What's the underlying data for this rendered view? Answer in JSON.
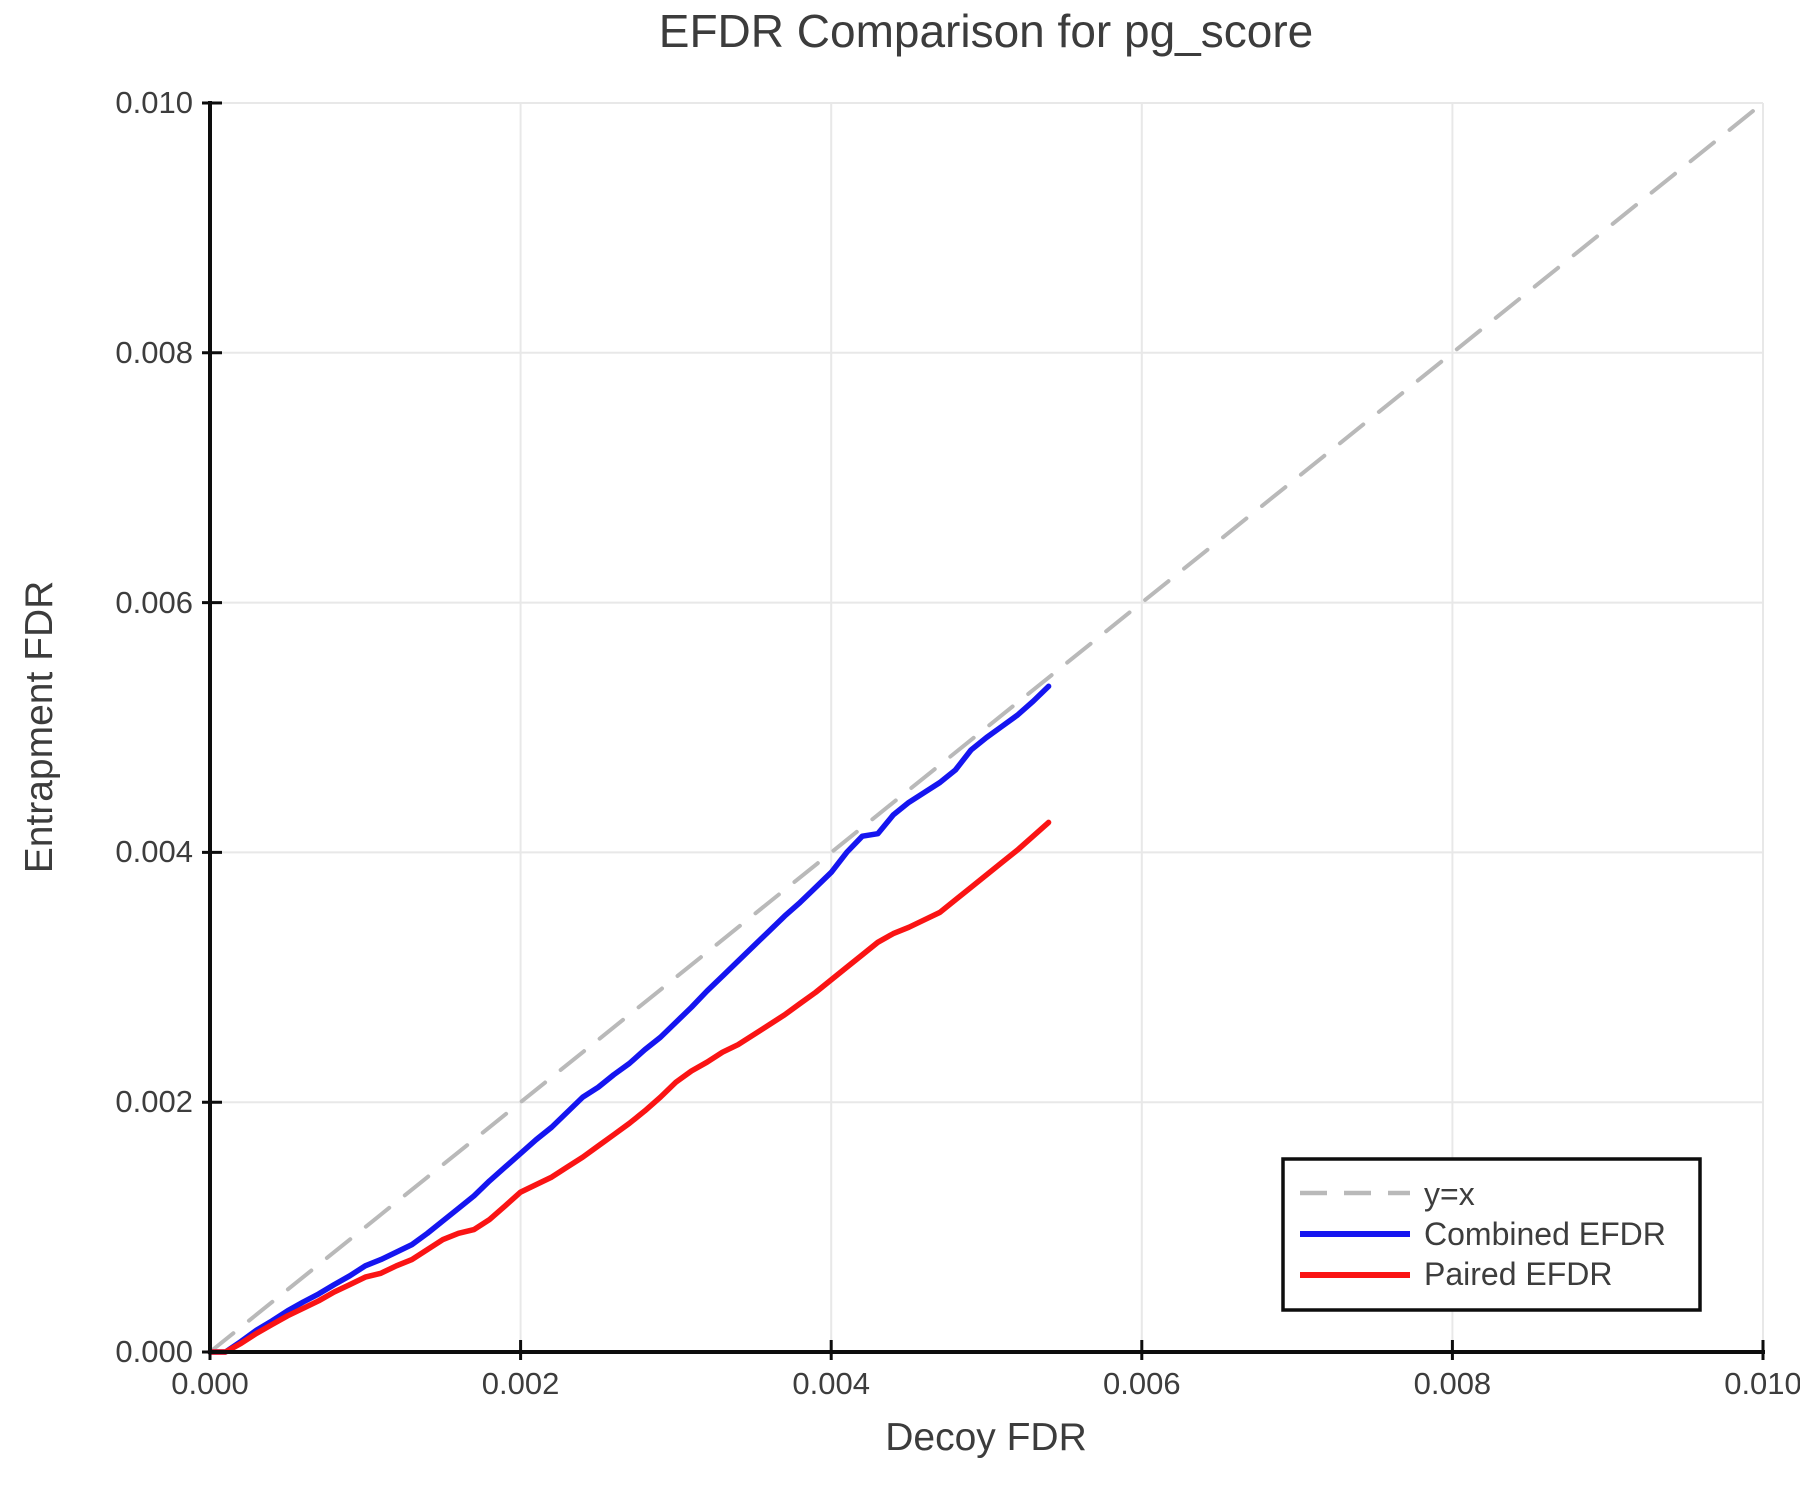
{
  "chart_data": {
    "type": "line",
    "title": "EFDR Comparison for pg_score",
    "xlabel": "Decoy FDR",
    "ylabel": "Entrapment FDR",
    "xlim": [
      0.0,
      0.01
    ],
    "ylim": [
      0.0,
      0.01
    ],
    "grid": true,
    "legend_position": "lower right",
    "xtick_values": [
      0.0,
      0.002,
      0.004,
      0.006,
      0.008,
      0.01
    ],
    "xtick_labels": [
      "0.000",
      "0.002",
      "0.004",
      "0.006",
      "0.008",
      "0.010"
    ],
    "ytick_values": [
      0.0,
      0.002,
      0.004,
      0.006,
      0.008,
      0.01
    ],
    "ytick_labels": [
      "0.000",
      "0.002",
      "0.004",
      "0.006",
      "0.008",
      "0.010"
    ],
    "x": [
      0.0,
      0.0001,
      0.0002,
      0.0003,
      0.0004,
      0.0005,
      0.0006,
      0.0007,
      0.0008,
      0.0009,
      0.001,
      0.0011,
      0.0012,
      0.0013,
      0.0014,
      0.0015,
      0.0016,
      0.0017,
      0.0018,
      0.0019,
      0.002,
      0.0021,
      0.0022,
      0.0023,
      0.0024,
      0.0025,
      0.0026,
      0.0027,
      0.0028,
      0.0029,
      0.003,
      0.0031,
      0.0032,
      0.0033,
      0.0034,
      0.0035,
      0.0036,
      0.0037,
      0.0038,
      0.0039,
      0.004,
      0.0041,
      0.0042,
      0.0043,
      0.0044,
      0.0045,
      0.0046,
      0.0047,
      0.0048,
      0.0049,
      0.005,
      0.0051,
      0.0052,
      0.0053,
      0.0054
    ],
    "series": [
      {
        "name": "y=x",
        "color": "#b9b9b9",
        "dash": true,
        "diagonal": true
      },
      {
        "name": "Combined EFDR",
        "color": "#1515f0",
        "dash": false,
        "y": [
          0,
          0,
          8.5e-05,
          0.000175,
          0.00025,
          0.00033,
          0.0004,
          0.000465,
          0.00054,
          0.00061,
          0.00069,
          0.00074,
          0.0008,
          0.00086,
          0.00095,
          0.00105,
          0.00115,
          0.00125,
          0.00137,
          0.00148,
          0.00159,
          0.0017,
          0.0018,
          0.00192,
          0.00204,
          0.00212,
          0.00222,
          0.00231,
          0.00242,
          0.00252,
          0.00264,
          0.00276,
          0.00289,
          0.00301,
          0.00313,
          0.00325,
          0.00337,
          0.00349,
          0.0036,
          0.00372,
          0.00384,
          0.004,
          0.00413,
          0.00415,
          0.0043,
          0.0044,
          0.00448,
          0.00456,
          0.00466,
          0.00482,
          0.00492,
          0.00501,
          0.0051,
          0.00521,
          0.00533
        ]
      },
      {
        "name": "Paired EFDR",
        "color": "#fa1414",
        "dash": false,
        "y": [
          0,
          0,
          7e-05,
          0.00015,
          0.00022,
          0.00029,
          0.00035,
          0.00041,
          0.00048,
          0.00054,
          0.0006,
          0.00063,
          0.00069,
          0.00074,
          0.00082,
          0.0009,
          0.00095,
          0.00098,
          0.00106,
          0.00117,
          0.00128,
          0.00134,
          0.0014,
          0.00148,
          0.00156,
          0.00165,
          0.00174,
          0.00183,
          0.00193,
          0.00204,
          0.00216,
          0.00225,
          0.00232,
          0.0024,
          0.00246,
          0.00254,
          0.00262,
          0.0027,
          0.00279,
          0.00288,
          0.00298,
          0.00308,
          0.00318,
          0.00328,
          0.00335,
          0.0034,
          0.00346,
          0.00352,
          0.00362,
          0.00372,
          0.00382,
          0.00392,
          0.00402,
          0.00413,
          0.00424
        ]
      }
    ]
  },
  "colors": {
    "grid": "#e8e8e8",
    "spine": "#0d0d0d",
    "tick": "#0d0d0d",
    "text": "#3d3d3d",
    "legend_border": "#0d0d0d",
    "background": "#ffffff"
  }
}
